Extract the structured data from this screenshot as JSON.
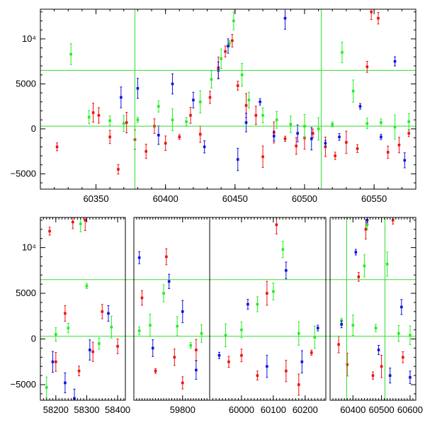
{
  "colors": {
    "red": "#ee1111",
    "green": "#22ee22",
    "blue": "#1111dd",
    "reference": "#33dd33"
  },
  "chart_data": [
    {
      "type": "scatter",
      "title": "",
      "xlabel": "",
      "ylabel": "",
      "xlim": [
        60310,
        60580
      ],
      "ylim": [
        -6700,
        13300
      ],
      "x_ticks": [
        "60350",
        "60400",
        "60450",
        "60500",
        "60550"
      ],
      "y_ticks": [
        "−5000",
        "0",
        "5000",
        "10⁴"
      ],
      "ref_lines": {
        "h": [
          300,
          6500
        ],
        "v": [
          60378,
          60512
        ]
      },
      "series": [
        {
          "color": "red",
          "points": [
            [
              60322,
              -2000
            ],
            [
              60348,
              1800
            ],
            [
              60352,
              1500
            ],
            [
              60360,
              -900
            ],
            [
              60366,
              -4500
            ],
            [
              60372,
              700
            ],
            [
              60378,
              -1200
            ],
            [
              60386,
              -2500
            ],
            [
              60392,
              300
            ],
            [
              60400,
              -1600
            ],
            [
              60410,
              -900
            ],
            [
              60418,
              1500
            ],
            [
              60425,
              -600
            ],
            [
              60432,
              3500
            ],
            [
              60438,
              6800
            ],
            [
              60443,
              8600
            ],
            [
              60448,
              9800
            ],
            [
              60452,
              4800
            ],
            [
              60458,
              2600
            ],
            [
              60465,
              1500
            ],
            [
              60470,
              -3100
            ],
            [
              60478,
              -400
            ],
            [
              60486,
              -1100
            ],
            [
              60494,
              -1900
            ],
            [
              60500,
              -1000
            ],
            [
              60506,
              -500
            ],
            [
              60515,
              -2000
            ],
            [
              60522,
              -3000
            ],
            [
              60530,
              -1500
            ],
            [
              60538,
              -2200
            ],
            [
              60545,
              6900
            ],
            [
              60548,
              13000
            ],
            [
              60553,
              12300
            ],
            [
              60560,
              -2600
            ],
            [
              60568,
              -1800
            ],
            [
              60575,
              -500
            ]
          ]
        },
        {
          "color": "green",
          "points": [
            [
              60332,
              8300
            ],
            [
              60345,
              1300
            ],
            [
              60360,
              900
            ],
            [
              60370,
              600
            ],
            [
              60380,
              1000
            ],
            [
              60395,
              2500
            ],
            [
              60405,
              1000
            ],
            [
              60415,
              800
            ],
            [
              60425,
              3000
            ],
            [
              60433,
              5500
            ],
            [
              60440,
              7800
            ],
            [
              60446,
              9500
            ],
            [
              60449,
              12000
            ],
            [
              60455,
              6000
            ],
            [
              60460,
              3200
            ],
            [
              60470,
              1500
            ],
            [
              60480,
              1000
            ],
            [
              60490,
              500
            ],
            [
              60500,
              300
            ],
            [
              60510,
              0
            ],
            [
              60520,
              500
            ],
            [
              60527,
              8500
            ],
            [
              60535,
              4200
            ],
            [
              60545,
              600
            ],
            [
              60555,
              700
            ],
            [
              60565,
              200
            ],
            [
              60575,
              800
            ]
          ]
        },
        {
          "color": "blue",
          "points": [
            [
              60368,
              3500
            ],
            [
              60380,
              4500
            ],
            [
              60395,
              -700
            ],
            [
              60405,
              5000
            ],
            [
              60420,
              3200
            ],
            [
              60428,
              -2000
            ],
            [
              60438,
              6500
            ],
            [
              60445,
              9200
            ],
            [
              60452,
              -3400
            ],
            [
              60458,
              700
            ],
            [
              60468,
              3000
            ],
            [
              60478,
              -800
            ],
            [
              60486,
              12300
            ],
            [
              60495,
              -500
            ],
            [
              60505,
              -1100
            ],
            [
              60515,
              -1600
            ],
            [
              60525,
              -900
            ],
            [
              60540,
              2500
            ],
            [
              60555,
              -900
            ],
            [
              60565,
              7500
            ],
            [
              60572,
              -3500
            ]
          ]
        }
      ]
    },
    {
      "type": "scatter",
      "title": "",
      "xlabel": "",
      "ylabel": "",
      "axis_breaks": true,
      "segments": [
        {
          "xlim": [
            58150,
            58425
          ],
          "x_ticks": [
            "58200",
            "58300",
            "58400"
          ]
        },
        {
          "xlim": [
            59620,
            59900
          ],
          "x_ticks": [
            "59800"
          ]
        },
        {
          "xlim": [
            59900,
            60265
          ],
          "x_ticks": [
            "60000",
            "60100",
            "60200"
          ]
        },
        {
          "xlim": [
            60320,
            60620
          ],
          "x_ticks": [
            "60400",
            "60500",
            "60600"
          ]
        }
      ],
      "ylim": [
        -6700,
        13300
      ],
      "y_ticks": [
        "−5000",
        "0",
        "5000",
        "10⁴"
      ],
      "ref_lines": {
        "h": [
          300,
          6500
        ],
        "v": [
          60378,
          60512
        ]
      },
      "series": [
        {
          "color": "red",
          "points": [
            [
              58180,
              11800
            ],
            [
              58200,
              -2500
            ],
            [
              58230,
              2800
            ],
            [
              58255,
              12800
            ],
            [
              58275,
              -3500
            ],
            [
              58295,
              13000
            ],
            [
              58320,
              -1400
            ],
            [
              58350,
              3000
            ],
            [
              58400,
              -800
            ],
            [
              59650,
              4500
            ],
            [
              59700,
              -3500
            ],
            [
              59740,
              9000
            ],
            [
              59770,
              -2000
            ],
            [
              59800,
              -4800
            ],
            [
              59850,
              -1200
            ],
            [
              59960,
              -2500
            ],
            [
              60000,
              -1800
            ],
            [
              60050,
              -4000
            ],
            [
              60080,
              5000
            ],
            [
              60110,
              12500
            ],
            [
              60140,
              -3500
            ],
            [
              60180,
              -5000
            ],
            [
              60220,
              -1500
            ],
            [
              60350,
              -600
            ],
            [
              60380,
              -2800
            ],
            [
              60420,
              6800
            ],
            [
              60445,
              12000
            ],
            [
              60470,
              -4000
            ],
            [
              60500,
              -3000
            ],
            [
              60540,
              13000
            ],
            [
              60575,
              -2000
            ]
          ]
        },
        {
          "color": "green",
          "points": [
            [
              58170,
              -5300
            ],
            [
              58200,
              500
            ],
            [
              58240,
              1200
            ],
            [
              58280,
              12600
            ],
            [
              58300,
              5800
            ],
            [
              58340,
              -500
            ],
            [
              58380,
              1300
            ],
            [
              59640,
              900
            ],
            [
              59680,
              1500
            ],
            [
              59730,
              5000
            ],
            [
              59780,
              1400
            ],
            [
              59830,
              -700
            ],
            [
              59870,
              600
            ],
            [
              59950,
              400
            ],
            [
              60000,
              1000
            ],
            [
              60050,
              3800
            ],
            [
              60100,
              5200
            ],
            [
              60130,
              9800
            ],
            [
              60180,
              600
            ],
            [
              60230,
              200
            ],
            [
              60360,
              2000
            ],
            [
              60400,
              1500
            ],
            [
              60440,
              8000
            ],
            [
              60450,
              12500
            ],
            [
              60480,
              1200
            ],
            [
              60520,
              8200
            ],
            [
              60560,
              600
            ],
            [
              60600,
              400
            ]
          ]
        },
        {
          "color": "blue",
          "points": [
            [
              58190,
              -2500
            ],
            [
              58230,
              -4800
            ],
            [
              58260,
              -6500
            ],
            [
              58310,
              -1200
            ],
            [
              58370,
              2800
            ],
            [
              59640,
              8900
            ],
            [
              59690,
              -1000
            ],
            [
              59750,
              6300
            ],
            [
              59800,
              3000
            ],
            [
              59850,
              -3400
            ],
            [
              59930,
              -1800
            ],
            [
              60020,
              3800
            ],
            [
              60080,
              -3000
            ],
            [
              60140,
              7500
            ],
            [
              60190,
              -2500
            ],
            [
              60240,
              1200
            ],
            [
              60360,
              1600
            ],
            [
              60410,
              9500
            ],
            [
              60450,
              13000
            ],
            [
              60490,
              -1200
            ],
            [
              60530,
              -4000
            ],
            [
              60570,
              3500
            ],
            [
              60600,
              -4200
            ]
          ]
        }
      ]
    }
  ]
}
